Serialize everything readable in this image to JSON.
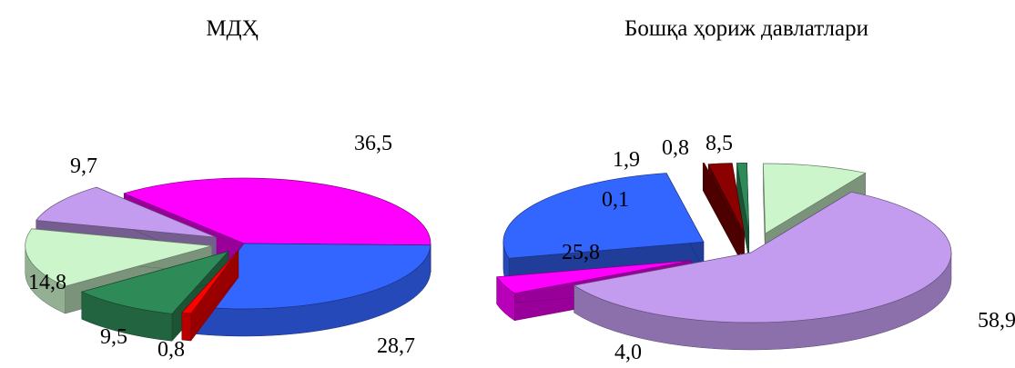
{
  "chart_data": [
    {
      "type": "pie",
      "title": "МДҲ",
      "style": "3d-exploded",
      "slices": [
        {
          "label": "36,5",
          "value": 36.5,
          "color": "#ff00ff"
        },
        {
          "label": "28,7",
          "value": 28.7,
          "color": "#3366ff"
        },
        {
          "label": "0,8",
          "value": 0.8,
          "color": "#ff0000"
        },
        {
          "label": "9,5",
          "value": 9.5,
          "color": "#2e8b57"
        },
        {
          "label": "14,8",
          "value": 14.8,
          "color": "#ccf5cc"
        },
        {
          "label": "9,7",
          "value": 9.7,
          "color": "#c39bef"
        }
      ]
    },
    {
      "type": "pie",
      "title": "Бошқа ҳориж давлатлари",
      "style": "3d-exploded",
      "slices": [
        {
          "label": "58,9",
          "value": 58.9,
          "color": "#c39bef"
        },
        {
          "label": "4,0",
          "value": 4.0,
          "color": "#ff00ff"
        },
        {
          "label": "25,8",
          "value": 25.8,
          "color": "#3366ff"
        },
        {
          "label": "0,1",
          "value": 0.1,
          "color": "#800000"
        },
        {
          "label": "1,9",
          "value": 1.9,
          "color": "#8b0000"
        },
        {
          "label": "0,8",
          "value": 0.8,
          "color": "#2e8b57"
        },
        {
          "label": "8,5",
          "value": 8.5,
          "color": "#ccf5cc"
        }
      ]
    }
  ]
}
